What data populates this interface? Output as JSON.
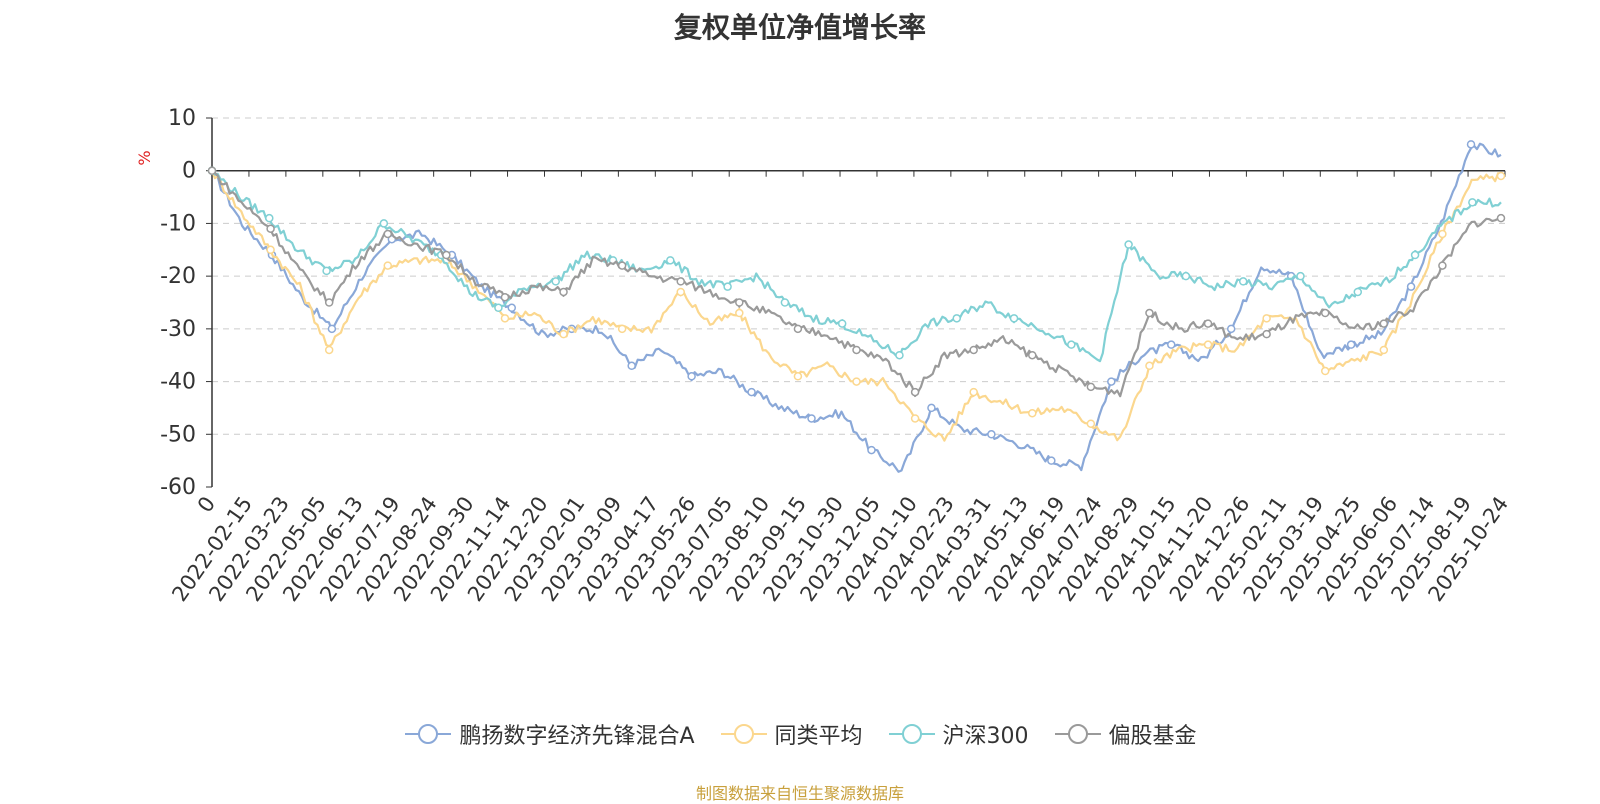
{
  "title": "复权单位净值增长率",
  "source_note": "制图数据来自恒生聚源数据库",
  "colors": {
    "鹏扬数字经济先锋混合A": "#8aa8d8",
    "同类平均": "#fbd78e",
    "沪深300": "#80d0d4",
    "偏股基金": "#9a9a9a"
  },
  "chart_data": {
    "type": "line",
    "title": "复权单位净值增长率",
    "ylabel": "%",
    "xlabel": "",
    "ylim": [
      -60,
      10
    ],
    "yticks": [
      10,
      0,
      -10,
      -20,
      -30,
      -40,
      -50,
      -60
    ],
    "grid": "horizontal dashed",
    "legend": "bottom-center",
    "x_tick_labels": [
      "0",
      "2022-02-15",
      "2022-03-23",
      "2022-05-05",
      "2022-06-13",
      "2022-07-19",
      "2022-08-24",
      "2022-09-30",
      "2022-11-14",
      "2022-12-20",
      "2023-02-01",
      "2023-03-09",
      "2023-04-17",
      "2023-05-26",
      "2023-07-05",
      "2023-08-10",
      "2023-09-15",
      "2023-10-30",
      "2023-12-05",
      "2024-01-10",
      "2024-02-23",
      "2024-03-31",
      "2024-05-13",
      "2024-06-19",
      "2024-07-24",
      "2024-08-29",
      "2024-10-15",
      "2024-11-20",
      "2024-12-26",
      "2025-02-11",
      "2025-03-19",
      "2025-04-25",
      "2025-06-06",
      "2025-07-14",
      "2025-08-19",
      "2025-10-24"
    ],
    "series": [
      {
        "name": "鹏扬数字经济先锋混合A",
        "values": [
          0,
          -10,
          -16,
          -24,
          -30,
          -20,
          -13,
          -12,
          -16,
          -22,
          -26,
          -31,
          -30,
          -30,
          -37,
          -34,
          -39,
          -38,
          -42,
          -45,
          -47,
          -46,
          -53,
          -57,
          -45,
          -49,
          -50,
          -52,
          -55,
          -56,
          -40,
          -35,
          -33,
          -36,
          -30,
          -18,
          -20,
          -35,
          -33,
          -31,
          -22,
          -10,
          5,
          3
        ]
      },
      {
        "name": "同类平均",
        "values": [
          0,
          -8,
          -15,
          -22,
          -34,
          -24,
          -18,
          -17,
          -17,
          -22,
          -28,
          -27,
          -31,
          -28,
          -30,
          -30,
          -23,
          -29,
          -27,
          -35,
          -39,
          -37,
          -40,
          -40,
          -47,
          -51,
          -42,
          -44,
          -46,
          -45,
          -48,
          -51,
          -37,
          -34,
          -33,
          -34,
          -28,
          -28,
          -38,
          -36,
          -34,
          -24,
          -12,
          -2,
          -1
        ]
      },
      {
        "name": "沪深300",
        "values": [
          0,
          -5,
          -9,
          -15,
          -19,
          -17,
          -10,
          -13,
          -16,
          -23,
          -26,
          -22,
          -21,
          -16,
          -17,
          -19,
          -17,
          -21,
          -22,
          -20,
          -25,
          -28,
          -29,
          -32,
          -35,
          -29,
          -28,
          -25,
          -28,
          -30,
          -33,
          -36,
          -14,
          -20,
          -20,
          -22,
          -21,
          -22,
          -20,
          -26,
          -23,
          -21,
          -16,
          -10,
          -6,
          -6
        ]
      },
      {
        "name": "偏股基金",
        "values": [
          0,
          -6,
          -11,
          -19,
          -25,
          -17,
          -12,
          -14,
          -16,
          -21,
          -24,
          -22,
          -23,
          -17,
          -18,
          -20,
          -21,
          -23,
          -25,
          -27,
          -30,
          -31,
          -34,
          -36,
          -42,
          -35,
          -34,
          -32,
          -35,
          -38,
          -41,
          -42,
          -27,
          -30,
          -29,
          -32,
          -31,
          -28,
          -27,
          -30,
          -29,
          -26,
          -18,
          -10,
          -9
        ]
      }
    ]
  }
}
